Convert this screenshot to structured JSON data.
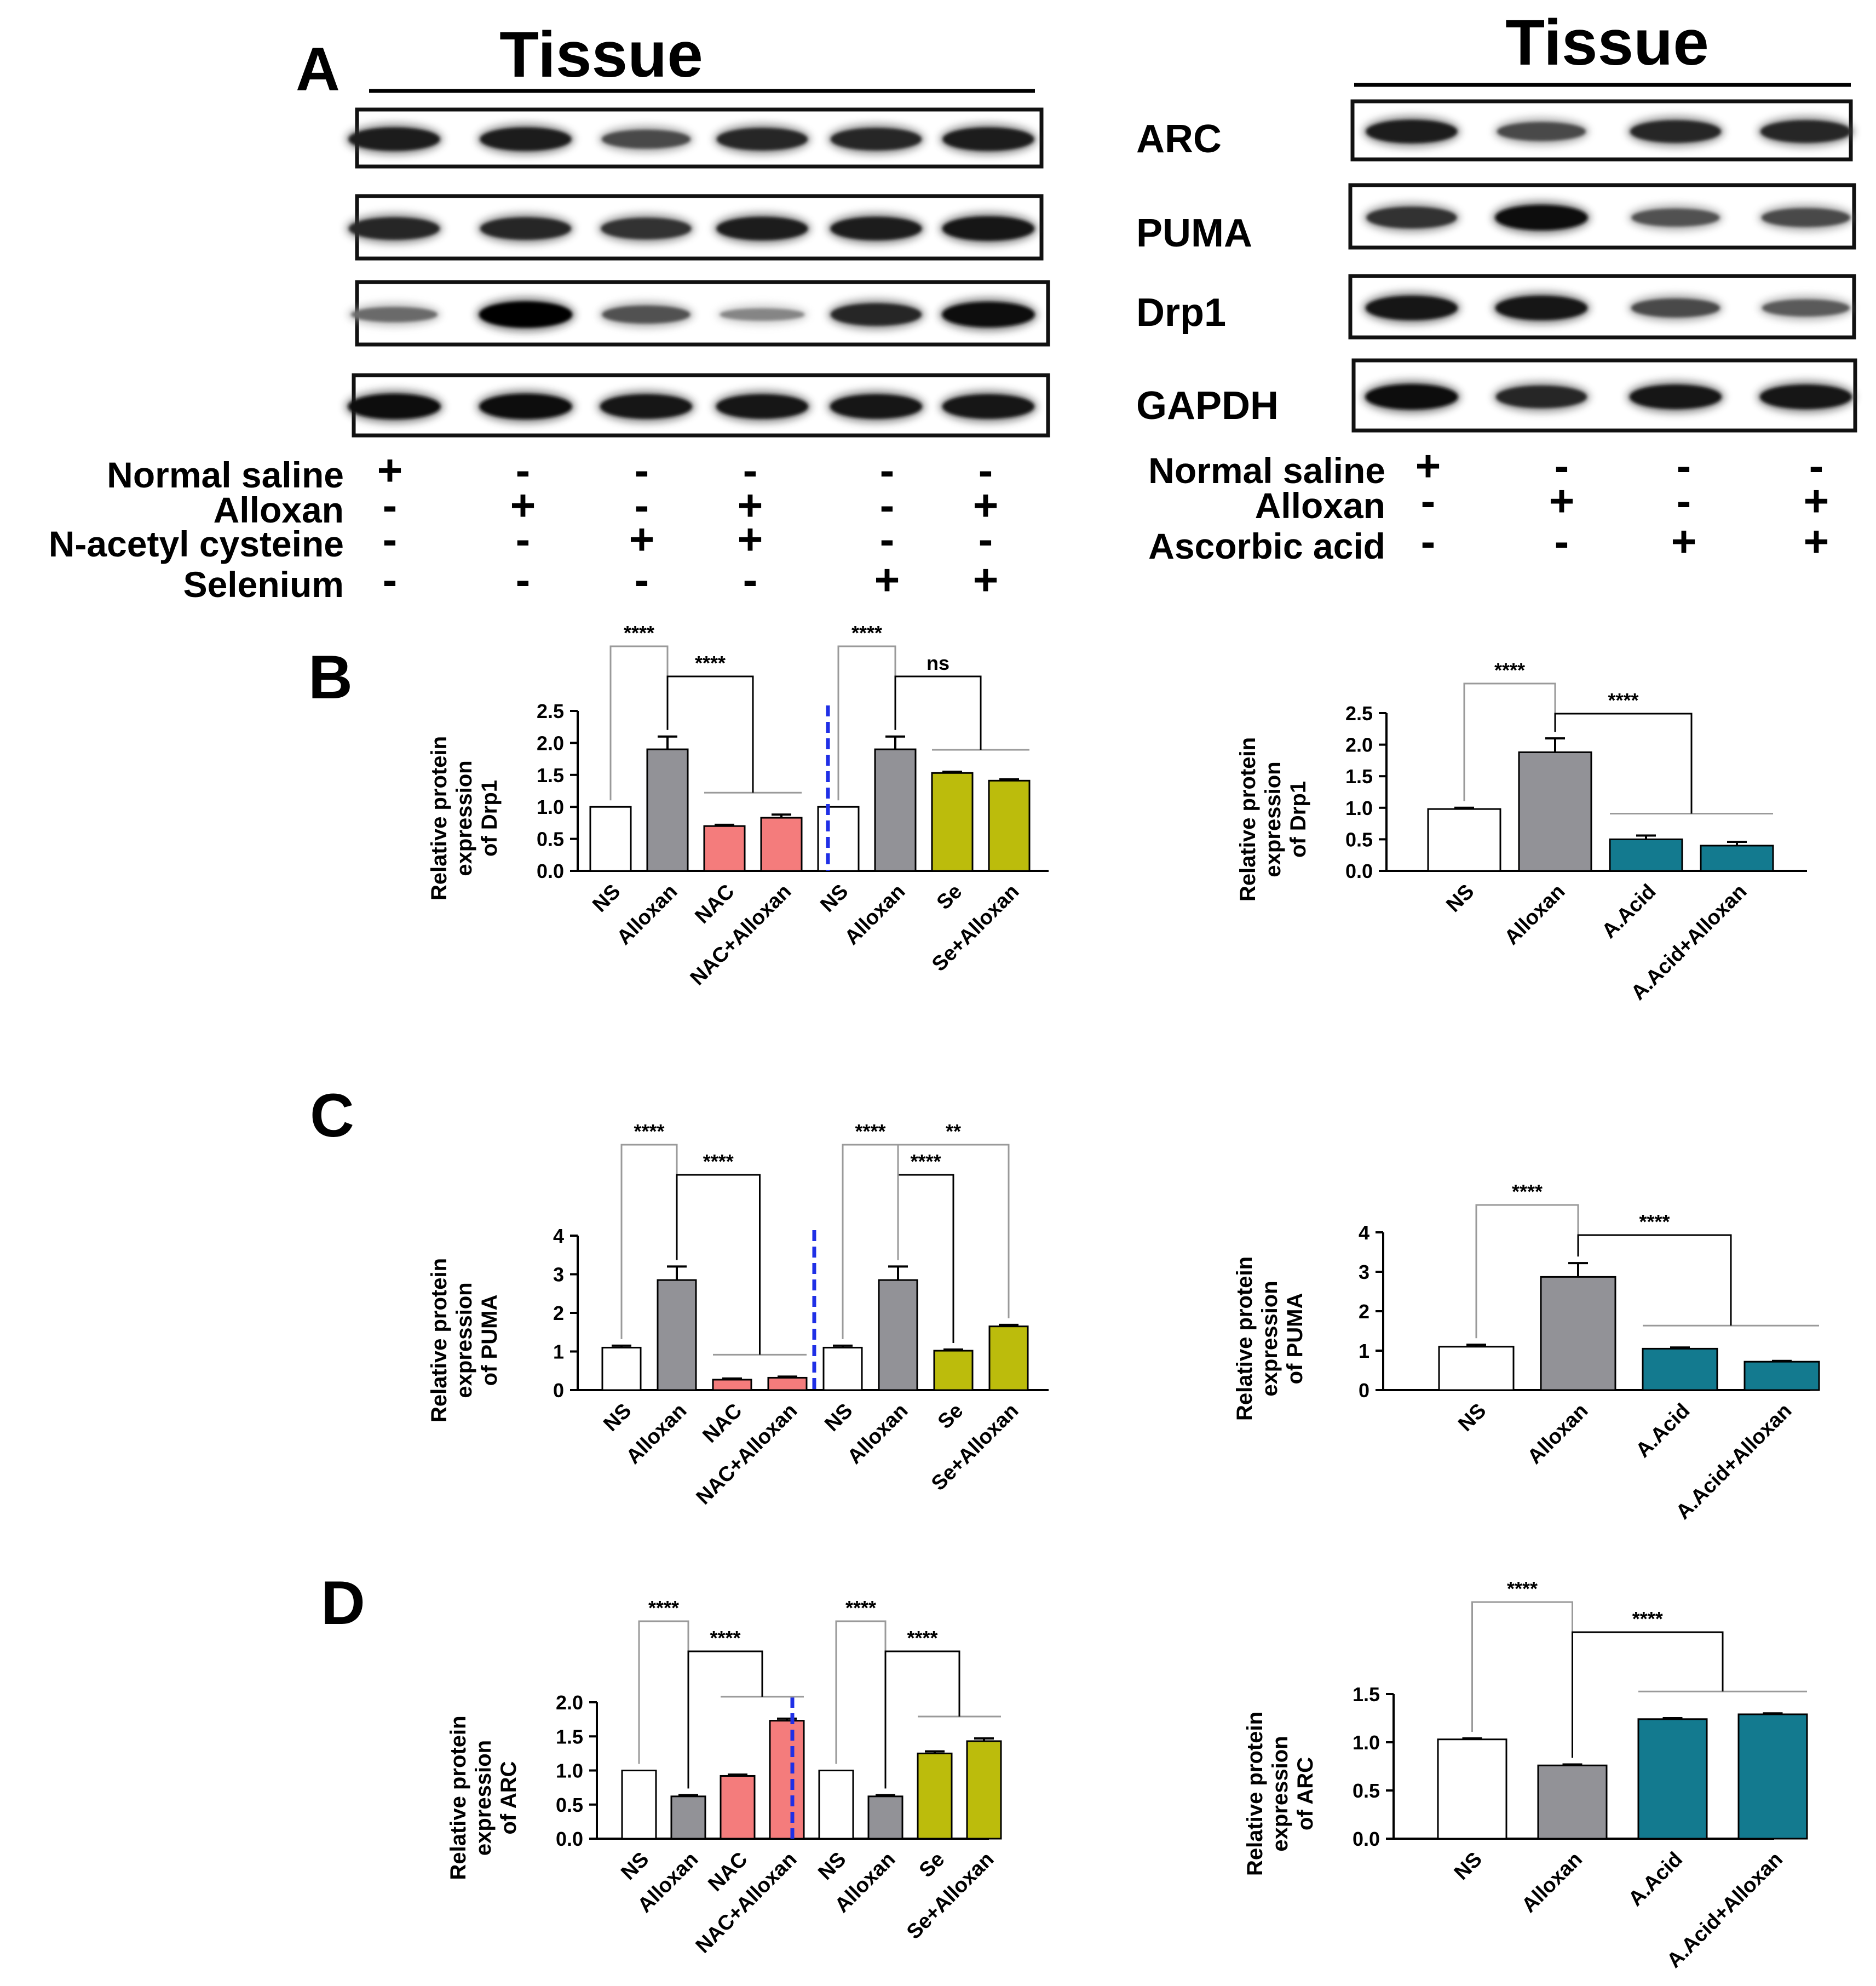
{
  "panel_labels": {
    "a": "A",
    "b": "B",
    "c": "C",
    "d": "D"
  },
  "blots": {
    "left": {
      "title": "Tissue",
      "lanes": 6,
      "band_intensity": [
        [
          0.85,
          0.85,
          0.6,
          0.8,
          0.8,
          0.85
        ],
        [
          0.8,
          0.8,
          0.75,
          0.85,
          0.85,
          0.9
        ],
        [
          0.4,
          1.0,
          0.55,
          0.25,
          0.8,
          0.95
        ],
        [
          0.95,
          0.95,
          0.9,
          0.9,
          0.9,
          0.9
        ]
      ],
      "treatments": [
        {
          "label": "Normal saline",
          "signs": [
            "+",
            "-",
            "-",
            "-",
            "-",
            "-"
          ]
        },
        {
          "label": "Alloxan",
          "signs": [
            "-",
            "+",
            "-",
            "+",
            "-",
            "+"
          ]
        },
        {
          "label": "N-acetyl cysteine",
          "signs": [
            "-",
            "-",
            "+",
            "+",
            "-",
            "-"
          ]
        },
        {
          "label": "Selenium",
          "signs": [
            "-",
            "-",
            "-",
            "-",
            "+",
            "+"
          ]
        }
      ]
    },
    "right": {
      "title": "Tissue",
      "lanes": 4,
      "proteins": [
        "ARC",
        "PUMA",
        "Drp1",
        "GAPDH"
      ],
      "band_intensity": [
        [
          0.85,
          0.6,
          0.8,
          0.8
        ],
        [
          0.75,
          0.95,
          0.55,
          0.6
        ],
        [
          0.9,
          0.9,
          0.6,
          0.5
        ],
        [
          0.95,
          0.8,
          0.9,
          0.9
        ]
      ],
      "treatments": [
        {
          "label": "Normal saline",
          "signs": [
            "+",
            "-",
            "-",
            "-"
          ]
        },
        {
          "label": "Alloxan",
          "signs": [
            "-",
            "+",
            "-",
            "+"
          ]
        },
        {
          "label": "Ascorbic acid",
          "signs": [
            "-",
            "-",
            "+",
            "+"
          ]
        }
      ]
    }
  },
  "colors": {
    "ns": "#ffffff",
    "alloxan": "#929297",
    "nac": "#f47c7c",
    "se": "#bcbc0c",
    "aacid": "#137a8f",
    "divider": "#1f2fe6",
    "bracket_light": "#9a9a9a"
  },
  "chart_data": [
    {
      "id": "B-left",
      "type": "bar",
      "ylabel": "Relative protein expression of Drp1",
      "ylim": [
        0,
        2.5
      ],
      "yticks": [
        "0.0",
        "0.5",
        "1.0",
        "1.5",
        "2.0",
        "2.5"
      ],
      "categories": [
        "NS",
        "Alloxan",
        "NAC",
        "NAC+Alloxan",
        "NS",
        "Alloxan",
        "Se",
        "Se+Alloxan"
      ],
      "values": [
        1.0,
        1.9,
        0.7,
        0.83,
        1.0,
        1.9,
        1.53,
        1.41
      ],
      "errors": [
        0,
        0.2,
        0.02,
        0.05,
        0,
        0.2,
        0.02,
        0.02
      ],
      "groups": [
        "ns",
        "alloxan",
        "nac",
        "nac",
        "ns",
        "alloxan",
        "se",
        "se"
      ],
      "divider_after": 3,
      "annotations": [
        {
          "text": "****",
          "from": 0,
          "to": 1
        },
        {
          "text": "****",
          "from": 1,
          "to": [
            2,
            3
          ]
        },
        {
          "text": "****",
          "from": 4,
          "to": 5
        },
        {
          "text": "ns",
          "from": 5,
          "to": [
            6,
            7
          ]
        }
      ]
    },
    {
      "id": "B-right",
      "type": "bar",
      "ylabel": "Relative protein expression of Drp1",
      "ylim": [
        0,
        2.5
      ],
      "yticks": [
        "0.0",
        "0.5",
        "1.0",
        "1.5",
        "2.0",
        "2.5"
      ],
      "categories": [
        "NS",
        "Alloxan",
        "A.Acid",
        "A.Acid+Alloxan"
      ],
      "values": [
        0.98,
        1.88,
        0.5,
        0.4
      ],
      "errors": [
        0.02,
        0.22,
        0.06,
        0.06
      ],
      "groups": [
        "ns",
        "alloxan",
        "aacid",
        "aacid"
      ],
      "annotations": [
        {
          "text": "****",
          "from": 0,
          "to": 1
        },
        {
          "text": "****",
          "from": 1,
          "to": [
            2,
            3
          ]
        }
      ]
    },
    {
      "id": "C-left",
      "type": "bar",
      "ylabel": "Relative protein expression of PUMA",
      "ylim": [
        0,
        4
      ],
      "yticks": [
        "0",
        "1",
        "2",
        "3",
        "4"
      ],
      "categories": [
        "NS",
        "Alloxan",
        "NAC",
        "NAC+Alloxan",
        "NS",
        "Alloxan",
        "Se",
        "Se+Alloxan"
      ],
      "values": [
        1.1,
        2.85,
        0.27,
        0.32,
        1.1,
        2.85,
        1.02,
        1.65
      ],
      "errors": [
        0.05,
        0.35,
        0.03,
        0.03,
        0.05,
        0.35,
        0.03,
        0.04
      ],
      "groups": [
        "ns",
        "alloxan",
        "nac",
        "nac",
        "ns",
        "alloxan",
        "se",
        "se"
      ],
      "divider_after": 3,
      "annotations": [
        {
          "text": "****",
          "from": 0,
          "to": 1
        },
        {
          "text": "****",
          "from": 1,
          "to": [
            2,
            3
          ]
        },
        {
          "text": "****",
          "from": 4,
          "to": 5
        },
        {
          "text": "****",
          "from": 5,
          "to": 6
        },
        {
          "text": "**",
          "from": 5,
          "to": 7
        }
      ]
    },
    {
      "id": "C-right",
      "type": "bar",
      "ylabel": "Relative protein expression of PUMA",
      "ylim": [
        0,
        4
      ],
      "yticks": [
        "0",
        "1",
        "2",
        "3",
        "4"
      ],
      "categories": [
        "NS",
        "Alloxan",
        "A.Acid",
        "A.Acid+Alloxan"
      ],
      "values": [
        1.1,
        2.87,
        1.05,
        0.72
      ],
      "errors": [
        0.05,
        0.35,
        0.03,
        0.02
      ],
      "groups": [
        "ns",
        "alloxan",
        "aacid",
        "aacid"
      ],
      "annotations": [
        {
          "text": "****",
          "from": 0,
          "to": 1
        },
        {
          "text": "****",
          "from": 1,
          "to": [
            2,
            3
          ]
        }
      ]
    },
    {
      "id": "D-left",
      "type": "bar",
      "ylabel": "Relative protein expression of ARC",
      "ylim": [
        0,
        2.0
      ],
      "yticks": [
        "0.0",
        "0.5",
        "1.0",
        "1.5",
        "2.0"
      ],
      "categories": [
        "NS",
        "Alloxan",
        "NAC",
        "NAC+Alloxan",
        "NS",
        "Alloxan",
        "Se",
        "Se+Alloxan"
      ],
      "values": [
        1.0,
        0.62,
        0.92,
        1.73,
        1.0,
        0.62,
        1.25,
        1.43
      ],
      "errors": [
        0,
        0.02,
        0.02,
        0.03,
        0,
        0.02,
        0.03,
        0.04
      ],
      "groups": [
        "ns",
        "alloxan",
        "nac",
        "nac",
        "ns",
        "alloxan",
        "se",
        "se"
      ],
      "divider_after": 3,
      "annotations": [
        {
          "text": "****",
          "from": 0,
          "to": 1
        },
        {
          "text": "****",
          "from": 1,
          "to": [
            2,
            3
          ]
        },
        {
          "text": "****",
          "from": 4,
          "to": 5
        },
        {
          "text": "****",
          "from": 5,
          "to": [
            6,
            7
          ]
        }
      ]
    },
    {
      "id": "D-right",
      "type": "bar",
      "ylabel": "Relative protein expression of ARC",
      "ylim": [
        0,
        1.5
      ],
      "yticks": [
        "0.0",
        "0.5",
        "1.0",
        "1.5"
      ],
      "categories": [
        "NS",
        "Alloxan",
        "A.Acid",
        "A.Acid+Alloxan"
      ],
      "values": [
        1.03,
        0.76,
        1.24,
        1.29
      ],
      "errors": [
        0.01,
        0.01,
        0.01,
        0.01
      ],
      "groups": [
        "ns",
        "alloxan",
        "aacid",
        "aacid"
      ],
      "annotations": [
        {
          "text": "****",
          "from": 0,
          "to": 1
        },
        {
          "text": "****",
          "from": 1,
          "to": [
            2,
            3
          ]
        }
      ]
    }
  ]
}
